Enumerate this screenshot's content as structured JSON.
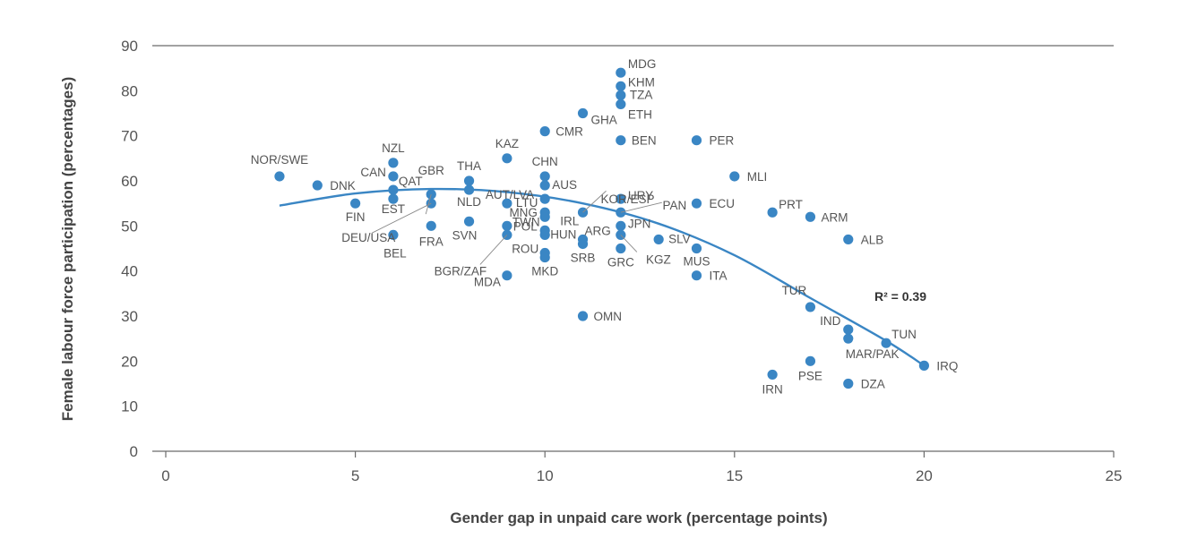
{
  "chart_data": {
    "type": "scatter",
    "xlabel": "Gender gap in unpaid care work (percentage points)",
    "ylabel": "Female labour force participation (percentages)",
    "xlim": [
      0,
      25
    ],
    "ylim": [
      0,
      90
    ],
    "x_ticks": [
      0,
      5,
      10,
      15,
      20,
      25
    ],
    "y_ticks": [
      0,
      10,
      20,
      30,
      40,
      50,
      60,
      70,
      80,
      90
    ],
    "grid": "none",
    "marker_color": "#3a86c4",
    "trend_color": "#3a86c4",
    "trendline_type": "quadratic",
    "r2_label": "R² = 0.39",
    "points": [
      {
        "label": "NOR/SWE",
        "x": 3,
        "y": 61
      },
      {
        "label": "DNK",
        "x": 4,
        "y": 59
      },
      {
        "label": "FIN",
        "x": 5,
        "y": 55
      },
      {
        "label": "NZL",
        "x": 6,
        "y": 64
      },
      {
        "label": "CAN",
        "x": 6,
        "y": 61
      },
      {
        "label": "QAT",
        "x": 6,
        "y": 58
      },
      {
        "label": "EST",
        "x": 6,
        "y": 56
      },
      {
        "label": "DEU/USA",
        "x": 7,
        "y": 55
      },
      {
        "label": "GBR",
        "x": 7,
        "y": 57
      },
      {
        "label": "BEL",
        "x": 6,
        "y": 48
      },
      {
        "label": "FRA",
        "x": 7,
        "y": 50
      },
      {
        "label": "THA",
        "x": 8,
        "y": 60
      },
      {
        "label": "NLD",
        "x": 8,
        "y": 58
      },
      {
        "label": "SVN",
        "x": 8,
        "y": 51
      },
      {
        "label": "KAZ",
        "x": 9,
        "y": 65
      },
      {
        "label": "AUT/LVA",
        "x": 10,
        "y": 56
      },
      {
        "label": "LTU",
        "x": 9,
        "y": 55
      },
      {
        "label": "TWN",
        "x": 9,
        "y": 50
      },
      {
        "label": "BGR/ZAF",
        "x": 9,
        "y": 48
      },
      {
        "label": "MDA",
        "x": 9,
        "y": 39
      },
      {
        "label": "CMR",
        "x": 10,
        "y": 71
      },
      {
        "label": "CHN",
        "x": 10,
        "y": 61
      },
      {
        "label": "AUS",
        "x": 10,
        "y": 59
      },
      {
        "label": "MNG",
        "x": 10,
        "y": 53
      },
      {
        "label": "IRL",
        "x": 10,
        "y": 52
      },
      {
        "label": "POL",
        "x": 10,
        "y": 49
      },
      {
        "label": "HUN",
        "x": 10,
        "y": 48
      },
      {
        "label": "ROU",
        "x": 10,
        "y": 44
      },
      {
        "label": "MKD",
        "x": 10,
        "y": 43
      },
      {
        "label": "GHA",
        "x": 11,
        "y": 75
      },
      {
        "label": "KOR/ESP",
        "x": 11,
        "y": 53
      },
      {
        "label": "ARG",
        "x": 11,
        "y": 47
      },
      {
        "label": "SRB",
        "x": 11,
        "y": 46
      },
      {
        "label": "OMN",
        "x": 11,
        "y": 30
      },
      {
        "label": "MDG",
        "x": 12,
        "y": 84
      },
      {
        "label": "KHM",
        "x": 12,
        "y": 81
      },
      {
        "label": "TZA",
        "x": 12,
        "y": 79
      },
      {
        "label": "ETH",
        "x": 12,
        "y": 77
      },
      {
        "label": "BEN",
        "x": 12,
        "y": 69
      },
      {
        "label": "URY",
        "x": 12,
        "y": 56
      },
      {
        "label": "PAN",
        "x": 12,
        "y": 53
      },
      {
        "label": "JPN",
        "x": 12,
        "y": 50
      },
      {
        "label": "KGZ",
        "x": 12,
        "y": 48
      },
      {
        "label": "GRC",
        "x": 12,
        "y": 45
      },
      {
        "label": "SLV",
        "x": 13,
        "y": 47
      },
      {
        "label": "PER",
        "x": 14,
        "y": 69
      },
      {
        "label": "ECU",
        "x": 14,
        "y": 55
      },
      {
        "label": "MUS",
        "x": 14,
        "y": 45
      },
      {
        "label": "ITA",
        "x": 14,
        "y": 39
      },
      {
        "label": "MLI",
        "x": 15,
        "y": 61
      },
      {
        "label": "PRT",
        "x": 16,
        "y": 53
      },
      {
        "label": "IRN",
        "x": 16,
        "y": 17
      },
      {
        "label": "ARM",
        "x": 17,
        "y": 52
      },
      {
        "label": "TUR",
        "x": 17,
        "y": 32
      },
      {
        "label": "PSE",
        "x": 17,
        "y": 20
      },
      {
        "label": "ALB",
        "x": 18,
        "y": 47
      },
      {
        "label": "IND",
        "x": 18,
        "y": 27
      },
      {
        "label": "MAR/PAK",
        "x": 18,
        "y": 25
      },
      {
        "label": "DZA",
        "x": 18,
        "y": 15
      },
      {
        "label": "TUN",
        "x": 19,
        "y": 24
      },
      {
        "label": "IRQ",
        "x": 20,
        "y": 19
      }
    ],
    "trendline": [
      {
        "x": 3,
        "y": 54.5
      },
      {
        "x": 5,
        "y": 57.2
      },
      {
        "x": 7,
        "y": 58.2
      },
      {
        "x": 9,
        "y": 57.5
      },
      {
        "x": 11,
        "y": 55.0
      },
      {
        "x": 13,
        "y": 50.5
      },
      {
        "x": 15,
        "y": 43.5
      },
      {
        "x": 17,
        "y": 34.0
      },
      {
        "x": 19,
        "y": 24.5
      },
      {
        "x": 20,
        "y": 19.0
      }
    ]
  }
}
